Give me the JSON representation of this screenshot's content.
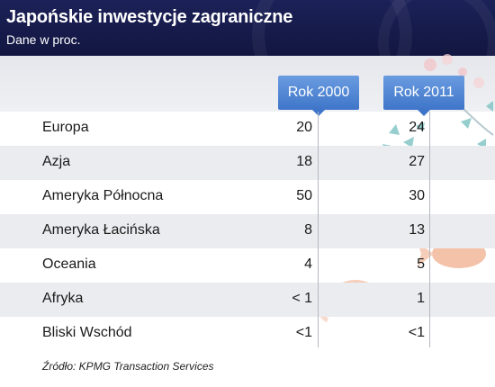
{
  "header": {
    "title": "Japońskie inwestycje zagraniczne",
    "subtitle": "Dane w proc."
  },
  "columns": [
    "Rok 2000",
    "Rok 2011"
  ],
  "chart_data": {
    "type": "table",
    "title": "Japońskie inwestycje zagraniczne",
    "subtitle": "Dane w proc.",
    "columns": [
      "Rok 2000",
      "Rok 2011"
    ],
    "rows": [
      {
        "label": "Europa",
        "values": [
          "20",
          "24"
        ]
      },
      {
        "label": "Azja",
        "values": [
          "18",
          "27"
        ]
      },
      {
        "label": "Ameryka Północna",
        "values": [
          "50",
          "30"
        ]
      },
      {
        "label": "Ameryka Łacińska",
        "values": [
          "8",
          "13"
        ]
      },
      {
        "label": "Oceania",
        "values": [
          "4",
          "5"
        ]
      },
      {
        "label": "Afryka",
        "values": [
          "< 1",
          "1"
        ]
      },
      {
        "label": "Bliski Wschód",
        "values": [
          "<1",
          "<1"
        ]
      }
    ]
  },
  "source": "Źródło: KPMG Transaction Services",
  "colors": {
    "header": "#1c2158",
    "column_header": "#4f85d4",
    "row_alt": "#ebecef"
  }
}
